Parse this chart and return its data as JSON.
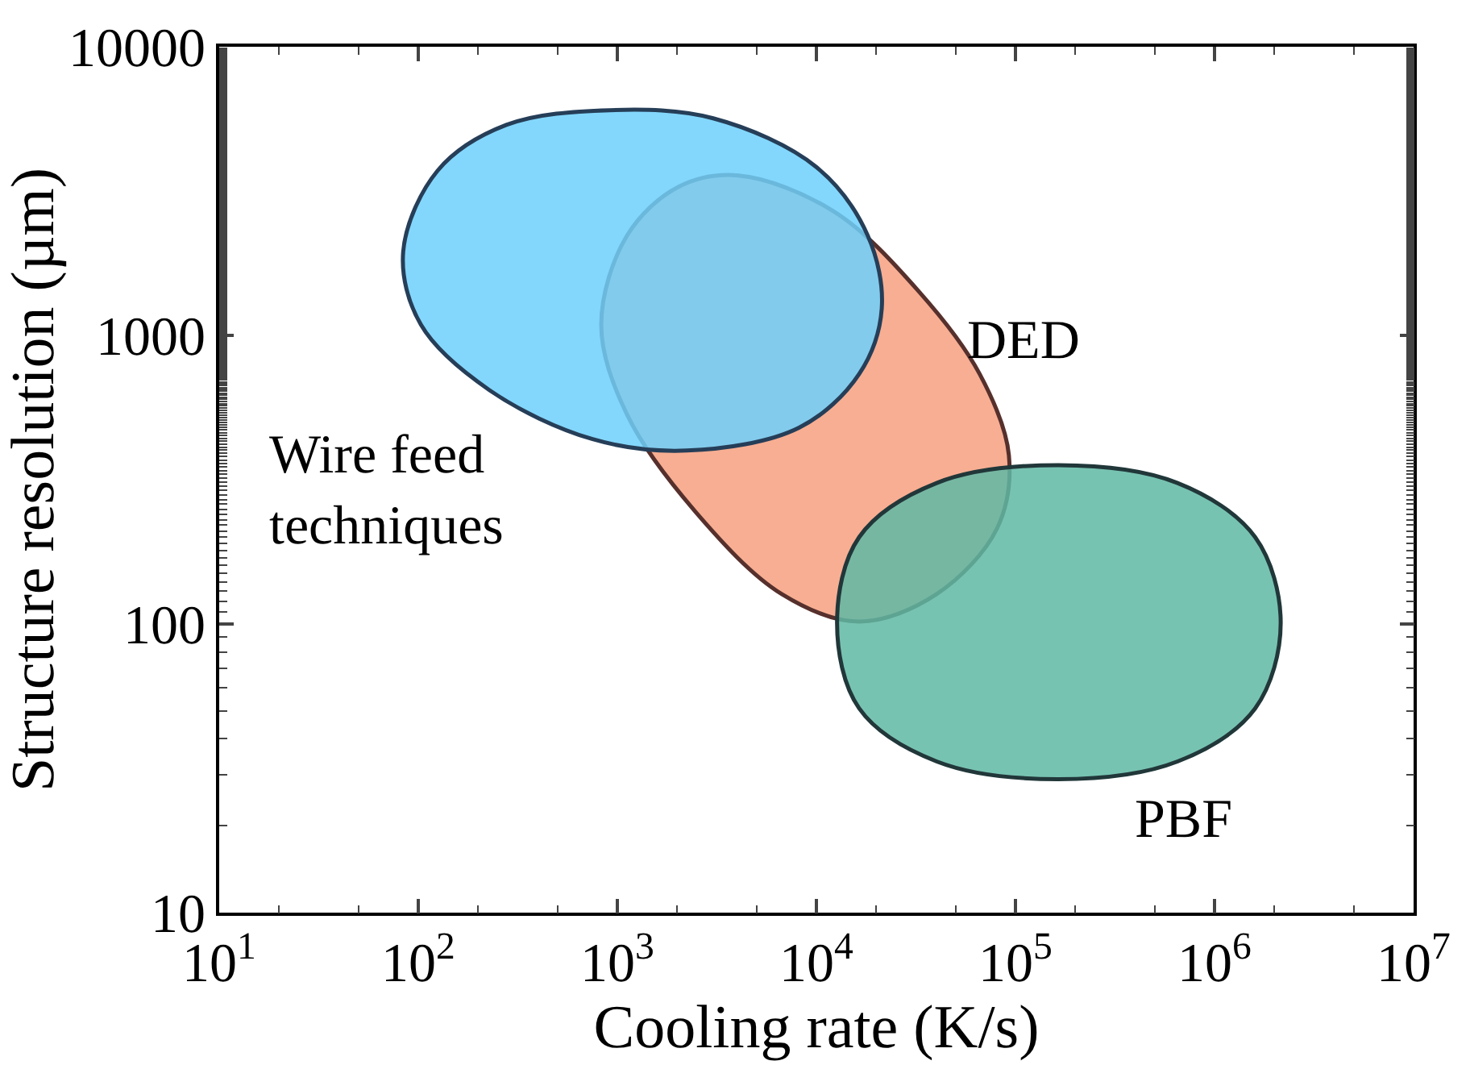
{
  "chart_data": {
    "type": "area",
    "xlabel": "Cooling rate (K/s)",
    "ylabel": "Structure resolution (µm)",
    "log": "xy",
    "grid": false,
    "legend": false,
    "xlim": [
      10,
      10000000
    ],
    "ylim": [
      10,
      10000
    ],
    "xticks": [
      {
        "value": 10,
        "label": "10$^{1}$"
      },
      {
        "value": 100,
        "label": "10$^{2}$"
      },
      {
        "value": 1000,
        "label": "10$^{3}$"
      },
      {
        "value": 10000,
        "label": "10$^{4}$"
      },
      {
        "value": 100000,
        "label": "10$^{5}$"
      },
      {
        "value": 1000000,
        "label": "10$^{6}$"
      },
      {
        "value": 10000000,
        "label": "10$^{7}$"
      }
    ],
    "yticks": [
      10,
      100,
      1000,
      10000
    ],
    "series": [
      {
        "name": "Wire feed techniques",
        "color": "#6dd0fb",
        "x": [
          84,
          125,
          277,
          916,
          3030,
          10000,
          18100,
          21300,
          16400,
          8180,
          2240,
          751,
          228,
          103
        ],
        "values": [
          1950,
          3720,
          5360,
          6030,
          5650,
          3830,
          2220,
          1240,
          735,
          479,
          399,
          437,
          646,
          1090
        ]
      },
      {
        "name": "DED",
        "color": "#f7a07f",
        "x": [
          4070,
          12200,
          33000,
          66100,
          92700,
          80700,
          40200,
          16400,
          6700,
          2480,
          1120,
          830,
          1120,
          2030
        ],
        "values": [
          3580,
          2690,
          1410,
          735,
          384,
          214,
          127,
          102,
          127,
          244,
          531,
          1090,
          2220,
          3270
        ]
      },
      {
        "name": "PBF",
        "color": "#5fb8a4",
        "x": [
          12700,
          16400,
          40200,
          165000,
          652000,
          1600000,
          2150000,
          1600000,
          652000,
          165000,
          40200,
          16400
        ],
        "values": [
          101,
          200,
          308,
          355,
          308,
          200,
          101,
          51,
          33.4,
          29,
          33.4,
          51
        ]
      }
    ]
  }
}
